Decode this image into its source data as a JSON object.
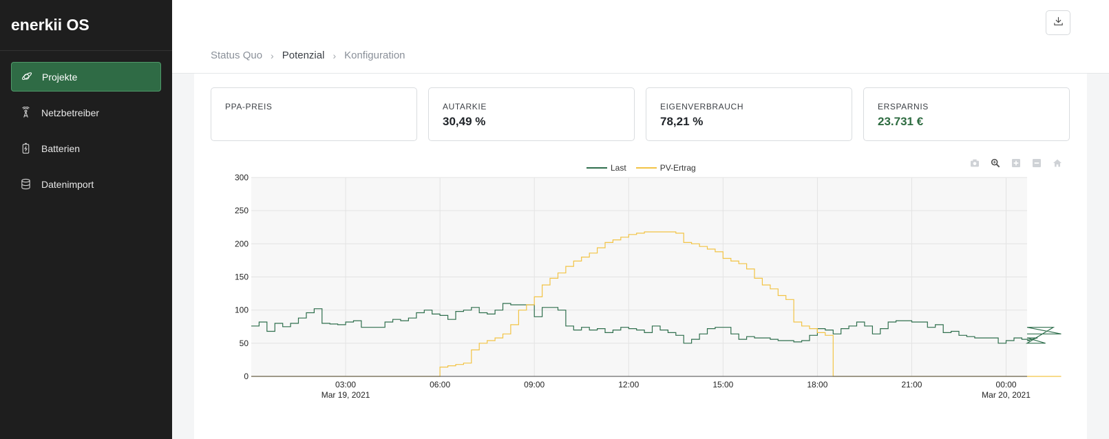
{
  "app": {
    "title": "enerkii OS"
  },
  "sidebar": {
    "items": [
      {
        "label": "Projekte",
        "icon": "planet-icon",
        "active": true
      },
      {
        "label": "Netzbetreiber",
        "icon": "tower-icon",
        "active": false
      },
      {
        "label": "Batterien",
        "icon": "battery-icon",
        "active": false
      },
      {
        "label": "Datenimport",
        "icon": "database-icon",
        "active": false
      }
    ]
  },
  "header": {
    "breadcrumb": [
      {
        "label": "Status Quo",
        "current": false
      },
      {
        "label": "Potenzial",
        "current": true
      },
      {
        "label": "Konfiguration",
        "current": false
      }
    ],
    "download_icon": "download-icon"
  },
  "kpis": [
    {
      "title": "PPA-PREIS",
      "value": ""
    },
    {
      "title": "AUTARKIE",
      "value": "30,49 %"
    },
    {
      "title": "EIGENVERBRAUCH",
      "value": "78,21 %"
    },
    {
      "title": "ERSPARNIS",
      "value": "23.731 €",
      "accent": "#2d6b40"
    }
  ],
  "toolbar": [
    "camera-icon",
    "zoom-icon",
    "zoom-in-icon",
    "zoom-out-icon",
    "home-icon"
  ],
  "chart_data": {
    "type": "line",
    "step": true,
    "ylim": [
      0,
      300
    ],
    "yticks": [
      0,
      50,
      100,
      150,
      200,
      250,
      300
    ],
    "xlim": [
      "2021-03-19 00:00",
      "2021-03-20 00:40"
    ],
    "xticks": [
      {
        "time": "03:00",
        "date": "Mar 19, 2021"
      },
      {
        "time": "06:00",
        "date": ""
      },
      {
        "time": "09:00",
        "date": ""
      },
      {
        "time": "12:00",
        "date": ""
      },
      {
        "time": "15:00",
        "date": ""
      },
      {
        "time": "18:00",
        "date": ""
      },
      {
        "time": "21:00",
        "date": ""
      },
      {
        "time": "00:00",
        "date": "Mar 20, 2021"
      }
    ],
    "grid": true,
    "legend_position": "top-center",
    "series": [
      {
        "name": "Last",
        "color": "#2e6e4c",
        "x_start": "2021-03-19 00:00",
        "x_step_minutes": 15,
        "values": [
          76,
          82,
          68,
          80,
          75,
          80,
          88,
          96,
          102,
          80,
          79,
          78,
          82,
          84,
          74,
          74,
          74,
          82,
          86,
          84,
          88,
          96,
          100,
          94,
          92,
          86,
          98,
          100,
          104,
          96,
          94,
          100,
          110,
          108,
          108,
          108,
          90,
          104,
          104,
          100,
          76,
          70,
          74,
          70,
          72,
          66,
          70,
          74,
          72,
          70,
          66,
          76,
          70,
          66,
          62,
          50,
          56,
          64,
          72,
          74,
          74,
          64,
          56,
          60,
          58,
          58,
          56,
          54,
          54,
          52,
          54,
          62,
          72,
          70,
          64,
          72,
          76,
          82,
          76,
          64,
          72,
          82,
          84,
          84,
          82,
          82,
          74,
          78,
          66,
          68,
          62,
          60,
          58,
          58,
          58,
          50,
          54,
          58,
          56,
          54,
          58,
          50,
          74,
          64
        ]
      },
      {
        "name": "PV-Ertrag",
        "color": "#f2c344",
        "x_start": "2021-03-19 00:00",
        "x_step_minutes": 15,
        "values": [
          0,
          0,
          0,
          0,
          0,
          0,
          0,
          0,
          0,
          0,
          0,
          0,
          0,
          0,
          0,
          0,
          0,
          0,
          0,
          0,
          0,
          0,
          0,
          0,
          14,
          16,
          18,
          20,
          40,
          50,
          54,
          58,
          64,
          78,
          100,
          108,
          120,
          138,
          148,
          156,
          166,
          174,
          180,
          186,
          194,
          202,
          206,
          210,
          214,
          216,
          218,
          218,
          218,
          218,
          216,
          202,
          200,
          196,
          192,
          188,
          178,
          174,
          170,
          162,
          148,
          138,
          132,
          122,
          116,
          82,
          76,
          72,
          66,
          62,
          0,
          0,
          0,
          0,
          0,
          0,
          0,
          0,
          0,
          0,
          0,
          0,
          0,
          0,
          0,
          0,
          0,
          0,
          0,
          0,
          0,
          0,
          0,
          0,
          0,
          0,
          0,
          0,
          0,
          0
        ]
      }
    ]
  }
}
